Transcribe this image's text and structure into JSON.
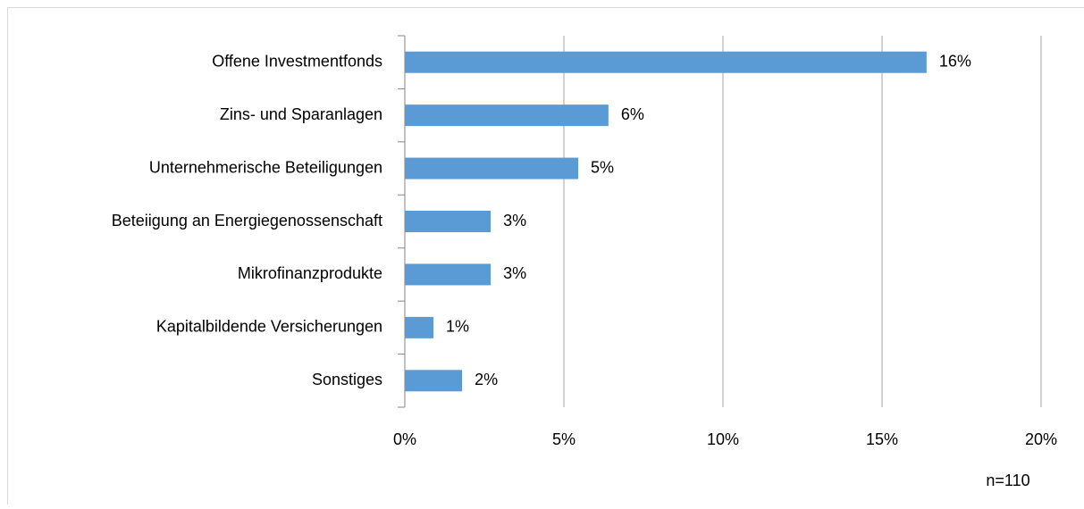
{
  "chart_data": {
    "type": "bar",
    "orientation": "horizontal",
    "categories": [
      "Offene Investmentfonds",
      "Zins- und Sparanlagen",
      "Unternehmerische Beteiligungen",
      "Beteiigung an Energiegenossenschaft",
      "Mikrofinanzprodukte",
      "Kapitalbildende Versicherungen",
      "Sonstiges"
    ],
    "values": [
      16.4,
      6.4,
      5.45,
      2.7,
      2.7,
      0.9,
      1.8
    ],
    "value_labels": [
      "16%",
      "6%",
      "5%",
      "3%",
      "3%",
      "1%",
      "2%"
    ],
    "color": "#5b9bd5",
    "xlim": [
      0,
      20
    ],
    "xticks": [
      {
        "value": 0,
        "label": "0%"
      },
      {
        "value": 5,
        "label": "5%"
      },
      {
        "value": 10,
        "label": "10%"
      },
      {
        "value": 15,
        "label": "15%"
      },
      {
        "value": 20,
        "label": "20%"
      }
    ],
    "grid": true,
    "annotation": "n=110"
  }
}
